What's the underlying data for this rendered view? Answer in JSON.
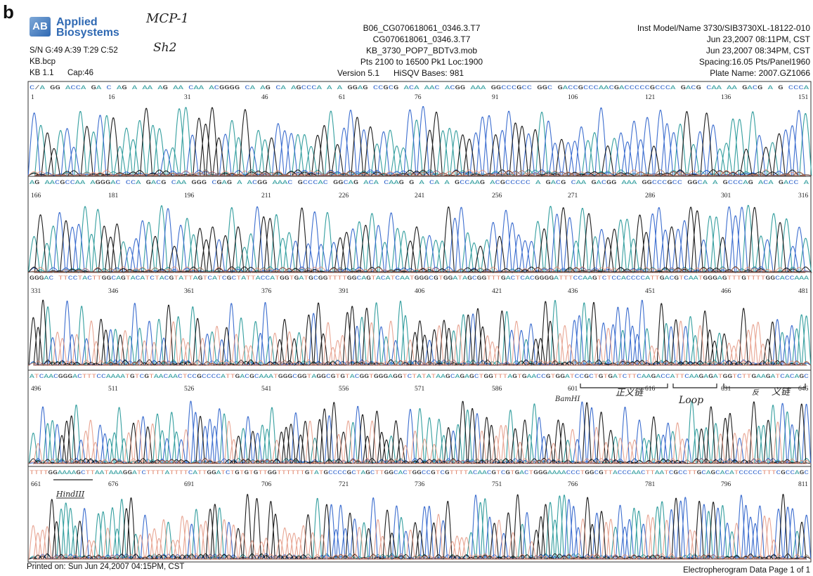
{
  "panel_label": "b",
  "brand": {
    "line1": "Applied",
    "line2": "Biosystems",
    "mark": "AB"
  },
  "handwriting": {
    "top": "MCP-1",
    "sub": "Sh2"
  },
  "meta_left": [
    "S/N G:49 A:39 T:29 C:52",
    "KB.bcp",
    "KB 1.1",
    "Cap:46"
  ],
  "meta_center": [
    "B06_CG070618061_0346.3.T7",
    "CG070618061_0346.3.T7",
    "KB_3730_POP7_BDTv3.mob",
    "Pts 2100 to 16500 Pk1 Loc:1900",
    "Version 5.1",
    "HiSQV Bases: 981"
  ],
  "meta_right": [
    "Inst Model/Name 3730/SIB3730XL-18122-010",
    "Jun 23,2007 08:11PM, CST",
    "Jun 23,2007 08:34PM, CST",
    "Spacing:16.05 Pts/Panel1960",
    "Plate Name: 2007.GZ1066"
  ],
  "footer_left": "Printed on: Sun Jun 24,2007 04:15PM, CST",
  "footer_right": "Electropherogram Data  Page 1 of 1",
  "colors": {
    "A": "#2a9a9a",
    "C": "#3366cc",
    "G": "#111111",
    "T": "#e08870"
  },
  "chart_data": {
    "type": "line",
    "panels": [
      {
        "sequence": "C/A GG ACCA GA C AG A AA AG AA CAA ACGGGG CA AG CA AGCCCA A A GGAG CCGCG ACA AAC ACGG AAA GGCCCGCC GGC GACCGCCCAACGACCCCCGCCCA GACG CAA AA GACG A G CCCA",
        "tick_labels": [
          "1",
          "16",
          "31",
          "46",
          "61",
          "76",
          "91",
          "106",
          "121",
          "136",
          "151"
        ]
      },
      {
        "sequence": "AG AACGCCAA AGGGAC CCA GACG CAA GGG CGAG A ACGG AAAC GCCCAC GGCAG ACA CAAG G A CA A GCCAAG ACGCCCCC A GACG CAA GACGG AAA GGCCCGCC GGCA A GCCCAG ACA GACC A",
        "tick_labels": [
          "166",
          "181",
          "196",
          "211",
          "226",
          "241",
          "256",
          "271",
          "286",
          "301",
          "316"
        ]
      },
      {
        "sequence": "GGGAC TTCCTACTTGGCAGTACATCTACGTATTAGTCATCGCTATTACCATGGTGATGCGGTTTTGGCAGTACATCAATGGGCGTGGATAGCGGTTTGACTCACGGGGATTTCCAAGTCTCCACCCCATTGACGTCAATGGGAGTTTGTTTTGGCACCAAA",
        "tick_labels": [
          "331",
          "346",
          "361",
          "376",
          "391",
          "406",
          "421",
          "436",
          "451",
          "466",
          "481"
        ]
      },
      {
        "sequence": "ATCAACGGGACTTTCCAAAATGTCGTAACAACTCCGCCCCATTGACGCAAATGGGCGGTAGGCGTGTACGGTGGGAGGTCTATATAAGCAGAGCTGGTTTAGTGAACCGTGGATCCGCTGTGATCTTCAAGACCATTCAAGAGATGGTCTTGAAGATCACAGC",
        "tick_labels": [
          "496",
          "511",
          "526",
          "541",
          "556",
          "571",
          "586",
          "601",
          "616",
          "631",
          "646"
        ],
        "annotations": [
          "BamHI",
          "正义链",
          "Loop",
          "反",
          "义链"
        ]
      },
      {
        "sequence": "TTTTGGAAAAGCTTAATAAAGGATCTTTTATTTTCATTGGATCTGTGTGTTGGTTTTTTGTATGCCCCGCTAGCTTGGCACTGGCCGTCGTTTTACAACGTCGTGACTGGGAAAACCCTGGCGTTACCCAACTTAATCGCCTTGCAGCACATCCCCCTTTCGCCAGC",
        "tick_labels": [
          "661",
          "676",
          "691",
          "706",
          "721",
          "736",
          "751",
          "766",
          "781",
          "796",
          "811"
        ],
        "annotations": [
          "HindIII"
        ]
      }
    ]
  }
}
